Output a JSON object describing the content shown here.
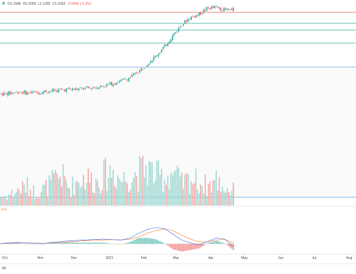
{
  "legend": {
    "open": "O1.1945",
    "high": "H1.2059",
    "low": "L1.1265",
    "close": "C1.1692",
    "change": "-0.0646 (-5.3%)"
  },
  "macd_label": "2563",
  "range_button": "All",
  "colors": {
    "up": "#26a69a",
    "down": "#ef5350",
    "macd": "#2962ff",
    "signal": "#ff6d00",
    "hline_red": "#ef5350",
    "hline_green": "#26a69a",
    "hline_blue": "#5b9bd5"
  },
  "chart_data": {
    "type": "candlestick",
    "x_ticks": [
      "Oct",
      "Nov",
      "Dec",
      "2021",
      "Feb",
      "Mar",
      "Apr",
      "May",
      "Jun",
      "Jul",
      "Aug"
    ],
    "date_start": "2020-09-15",
    "date_end": "2021-04-18",
    "horizontal_lines": [
      {
        "color": "red"
      },
      {
        "color": "green"
      },
      {
        "color": "green"
      },
      {
        "color": "green"
      },
      {
        "color": "blue"
      }
    ],
    "series": [
      {
        "name": "price",
        "values": [
          0.33,
          0.335,
          0.345,
          0.338,
          0.34,
          0.347,
          0.352,
          0.36,
          0.365,
          0.366,
          0.372,
          0.38,
          0.392,
          0.41,
          0.43,
          0.455,
          0.5,
          0.56,
          0.62,
          0.69,
          0.78,
          0.86,
          0.915,
          0.938,
          0.985,
          0.99,
          0.972,
          0.97
        ]
      },
      {
        "name": "volume",
        "values": [
          0.2,
          0.25,
          0.35,
          0.45,
          0.3,
          0.38,
          0.55,
          0.72,
          0.4,
          0.6,
          0.65,
          0.55,
          0.7,
          0.82,
          0.6,
          0.68,
          0.75,
          0.9,
          0.7,
          0.65,
          0.8,
          0.5,
          0.62,
          0.55,
          0.45,
          0.6,
          0.4,
          0.35
        ]
      },
      {
        "name": "macd",
        "values": [
          0.02,
          0.05,
          0.07,
          0.04,
          0.03,
          0.02,
          0.08,
          0.12,
          0.16,
          0.18,
          0.21,
          0.23,
          0.25,
          0.22,
          0.2,
          0.3,
          0.55,
          0.75,
          0.85,
          0.8,
          0.5,
          0.2,
          0.05,
          -0.05,
          0.12,
          0.3,
          0.25,
          -0.15
        ]
      },
      {
        "name": "signal",
        "values": [
          0.02,
          0.03,
          0.05,
          0.05,
          0.04,
          0.03,
          0.05,
          0.08,
          0.11,
          0.14,
          0.17,
          0.19,
          0.21,
          0.22,
          0.21,
          0.24,
          0.36,
          0.55,
          0.7,
          0.78,
          0.68,
          0.45,
          0.25,
          0.1,
          0.1,
          0.2,
          0.23,
          0.05
        ]
      }
    ]
  }
}
